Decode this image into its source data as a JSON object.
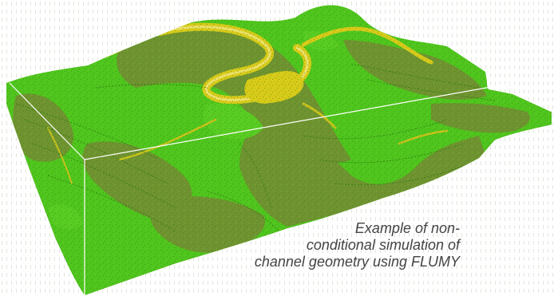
{
  "caption": {
    "line1": "Example of non-",
    "line2": "conditional simulation of",
    "line3": "channel geometry using FLUMY"
  },
  "colors": {
    "background": "#ffffff",
    "bright_green": "#4fc51d",
    "olive_green": "#6f9330",
    "channel_yellow": "#d7ca19",
    "pale_yellow": "#ece06a",
    "side_grey": "#8e8e7c",
    "caption_text": "#444444"
  }
}
